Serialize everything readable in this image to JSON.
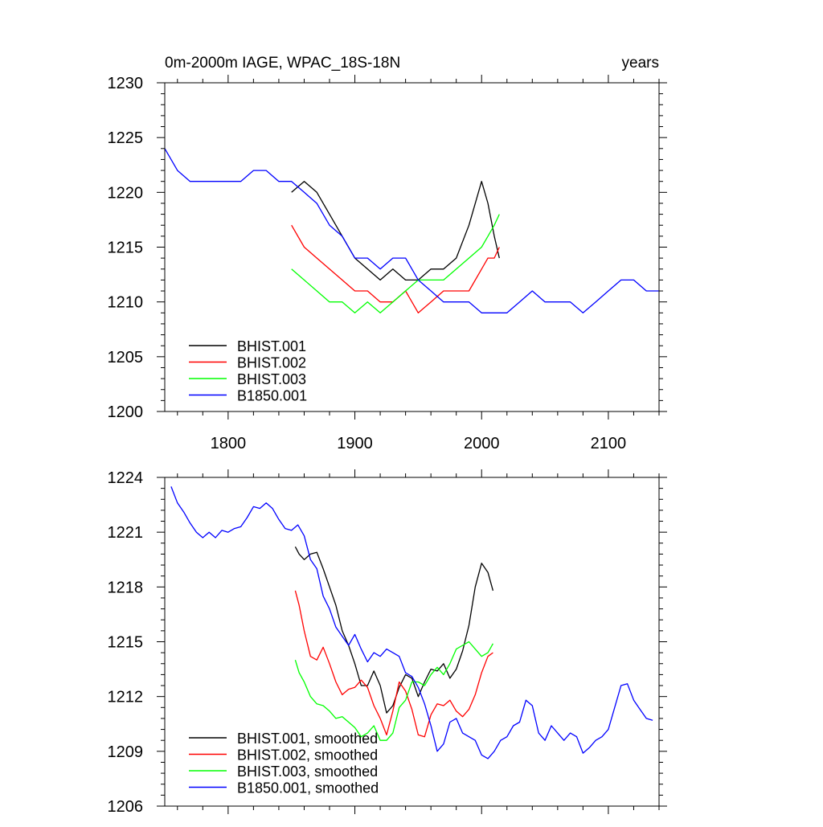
{
  "chart_data": [
    {
      "type": "line",
      "title": "0m-2000m IAGE, WPAC_18S-18N",
      "units": "years",
      "xlim": [
        1750,
        2140
      ],
      "ylim": [
        1200,
        1230
      ],
      "x_ticks": [
        1800,
        1900,
        2000,
        2100
      ],
      "y_ticks": [
        1200,
        1205,
        1210,
        1215,
        1220,
        1225,
        1230
      ],
      "x_tick_labels": [
        "1800",
        "1900",
        "2000",
        "2100"
      ],
      "y_tick_labels": [
        "1200",
        "1205",
        "1210",
        "1215",
        "1220",
        "1225",
        "1230"
      ],
      "legend_position": "bottom-left",
      "grid": false,
      "series": [
        {
          "name": "BHIST.001",
          "color": "#000000",
          "x": [
            1850,
            1860,
            1870,
            1880,
            1890,
            1900,
            1910,
            1920,
            1930,
            1940,
            1950,
            1960,
            1970,
            1980,
            1990,
            2000,
            2005,
            2010,
            2014
          ],
          "y": [
            1220,
            1221,
            1220,
            1218,
            1216,
            1214,
            1213,
            1212,
            1213,
            1212,
            1212,
            1213,
            1213,
            1214,
            1217,
            1221,
            1219,
            1216,
            1214
          ]
        },
        {
          "name": "BHIST.002",
          "color": "#ff0000",
          "x": [
            1850,
            1860,
            1870,
            1880,
            1890,
            1900,
            1910,
            1920,
            1930,
            1940,
            1950,
            1960,
            1970,
            1980,
            1990,
            2000,
            2005,
            2010,
            2014
          ],
          "y": [
            1217,
            1215,
            1214,
            1213,
            1212,
            1211,
            1211,
            1210,
            1210,
            1211,
            1209,
            1210,
            1211,
            1211,
            1211,
            1213,
            1214,
            1214,
            1215
          ]
        },
        {
          "name": "BHIST.003",
          "color": "#00ff00",
          "x": [
            1850,
            1860,
            1870,
            1880,
            1890,
            1900,
            1910,
            1920,
            1930,
            1940,
            1950,
            1960,
            1970,
            1980,
            1990,
            2000,
            2005,
            2010,
            2014
          ],
          "y": [
            1213,
            1212,
            1211,
            1210,
            1210,
            1209,
            1210,
            1209,
            1210,
            1211,
            1212,
            1212,
            1212,
            1213,
            1214,
            1215,
            1216,
            1217,
            1218
          ]
        },
        {
          "name": "B1850.001",
          "color": "#0000ff",
          "x": [
            1750,
            1760,
            1770,
            1780,
            1790,
            1800,
            1810,
            1820,
            1830,
            1840,
            1850,
            1860,
            1870,
            1880,
            1890,
            1900,
            1910,
            1920,
            1930,
            1940,
            1950,
            1960,
            1970,
            1980,
            1990,
            2000,
            2010,
            2020,
            2030,
            2040,
            2050,
            2060,
            2070,
            2080,
            2090,
            2100,
            2110,
            2120,
            2130,
            2140
          ],
          "y": [
            1224,
            1222,
            1221,
            1221,
            1221,
            1221,
            1221,
            1222,
            1222,
            1221,
            1221,
            1220,
            1219,
            1217,
            1216,
            1214,
            1214,
            1213,
            1214,
            1214,
            1212,
            1211,
            1210,
            1210,
            1210,
            1209,
            1209,
            1209,
            1210,
            1211,
            1210,
            1210,
            1210,
            1209,
            1210,
            1211,
            1212,
            1212,
            1211,
            1211
          ]
        }
      ]
    },
    {
      "type": "line",
      "xlim": [
        1750,
        2140
      ],
      "ylim": [
        1206,
        1224
      ],
      "x_ticks": [
        1800,
        1900,
        2000,
        2100
      ],
      "y_ticks": [
        1206,
        1209,
        1212,
        1215,
        1218,
        1221,
        1224
      ],
      "y_tick_labels": [
        "1206",
        "1209",
        "1212",
        "1215",
        "1218",
        "1221",
        "1224"
      ],
      "legend_position": "bottom-left",
      "grid": false,
      "series": [
        {
          "name": "BHIST.001, smoothed",
          "color": "#000000",
          "x": [
            1853,
            1856,
            1860,
            1865,
            1870,
            1875,
            1880,
            1885,
            1890,
            1895,
            1900,
            1905,
            1910,
            1915,
            1920,
            1925,
            1930,
            1935,
            1940,
            1945,
            1950,
            1955,
            1960,
            1965,
            1970,
            1975,
            1980,
            1985,
            1990,
            1995,
            2000,
            2005,
            2009
          ],
          "y": [
            1220.2,
            1219.8,
            1219.5,
            1219.8,
            1219.9,
            1219.0,
            1218.0,
            1217.0,
            1215.6,
            1214.8,
            1213.8,
            1212.6,
            1212.6,
            1213.4,
            1212.6,
            1211.1,
            1211.5,
            1212.5,
            1213.2,
            1213.0,
            1212.0,
            1212.8,
            1213.5,
            1213.4,
            1213.8,
            1213.0,
            1213.5,
            1214.5,
            1215.9,
            1218.0,
            1219.3,
            1218.8,
            1217.8
          ]
        },
        {
          "name": "BHIST.002, smoothed",
          "color": "#ff0000",
          "x": [
            1853,
            1856,
            1860,
            1865,
            1870,
            1875,
            1880,
            1885,
            1890,
            1895,
            1900,
            1905,
            1910,
            1915,
            1920,
            1925,
            1930,
            1935,
            1940,
            1945,
            1950,
            1955,
            1960,
            1965,
            1970,
            1975,
            1980,
            1985,
            1990,
            1995,
            2000,
            2005,
            2009
          ],
          "y": [
            1217.8,
            1217.0,
            1215.6,
            1214.2,
            1214.0,
            1214.7,
            1213.8,
            1212.8,
            1212.1,
            1212.4,
            1212.5,
            1212.9,
            1212.5,
            1211.5,
            1210.8,
            1209.9,
            1211.2,
            1212.8,
            1212.3,
            1211.3,
            1209.9,
            1209.8,
            1211.0,
            1211.6,
            1211.5,
            1211.8,
            1211.2,
            1210.9,
            1211.3,
            1212.1,
            1213.3,
            1214.2,
            1214.4
          ]
        },
        {
          "name": "BHIST.003, smoothed",
          "color": "#00ff00",
          "x": [
            1853,
            1856,
            1860,
            1865,
            1870,
            1875,
            1880,
            1885,
            1890,
            1895,
            1900,
            1905,
            1910,
            1915,
            1920,
            1925,
            1930,
            1935,
            1940,
            1945,
            1950,
            1955,
            1960,
            1965,
            1970,
            1975,
            1980,
            1985,
            1990,
            1995,
            2000,
            2005,
            2009
          ],
          "y": [
            1214.0,
            1213.3,
            1212.8,
            1212.0,
            1211.6,
            1211.5,
            1211.2,
            1210.8,
            1210.9,
            1210.6,
            1210.3,
            1209.8,
            1210.0,
            1210.4,
            1209.6,
            1209.6,
            1210.0,
            1211.4,
            1211.8,
            1212.8,
            1212.8,
            1212.6,
            1213.2,
            1213.6,
            1213.2,
            1213.8,
            1214.6,
            1214.8,
            1215.0,
            1214.6,
            1214.2,
            1214.4,
            1214.9
          ]
        },
        {
          "name": "B1850.001, smoothed",
          "color": "#0000ff",
          "x": [
            1755,
            1760,
            1765,
            1770,
            1775,
            1780,
            1785,
            1790,
            1795,
            1800,
            1805,
            1810,
            1815,
            1820,
            1825,
            1830,
            1835,
            1840,
            1845,
            1850,
            1855,
            1860,
            1865,
            1870,
            1875,
            1880,
            1885,
            1890,
            1895,
            1900,
            1905,
            1910,
            1915,
            1920,
            1925,
            1930,
            1935,
            1940,
            1945,
            1950,
            1955,
            1960,
            1965,
            1970,
            1975,
            1980,
            1985,
            1990,
            1995,
            2000,
            2005,
            2010,
            2015,
            2020,
            2025,
            2030,
            2035,
            2040,
            2045,
            2050,
            2055,
            2060,
            2065,
            2070,
            2075,
            2080,
            2085,
            2090,
            2095,
            2100,
            2105,
            2110,
            2115,
            2120,
            2125,
            2130,
            2135
          ],
          "y": [
            1223.5,
            1222.6,
            1222.1,
            1221.5,
            1221.0,
            1220.7,
            1221.0,
            1220.7,
            1221.1,
            1221.0,
            1221.2,
            1221.3,
            1221.8,
            1222.4,
            1222.3,
            1222.6,
            1222.3,
            1221.7,
            1221.2,
            1221.1,
            1221.4,
            1220.8,
            1219.5,
            1219.0,
            1217.5,
            1216.8,
            1215.8,
            1215.3,
            1214.8,
            1215.4,
            1214.6,
            1213.9,
            1214.4,
            1214.2,
            1214.6,
            1214.4,
            1214.2,
            1213.3,
            1213.1,
            1212.5,
            1211.6,
            1210.4,
            1209.0,
            1209.4,
            1210.6,
            1210.8,
            1210.0,
            1209.8,
            1209.6,
            1208.8,
            1208.6,
            1209.0,
            1209.6,
            1209.8,
            1210.4,
            1210.6,
            1211.8,
            1211.5,
            1210.0,
            1209.6,
            1210.4,
            1210.0,
            1209.6,
            1210.0,
            1209.8,
            1208.9,
            1209.2,
            1209.6,
            1209.8,
            1210.2,
            1211.4,
            1212.6,
            1212.7,
            1211.8,
            1211.3,
            1210.8,
            1210.7
          ]
        }
      ]
    }
  ]
}
